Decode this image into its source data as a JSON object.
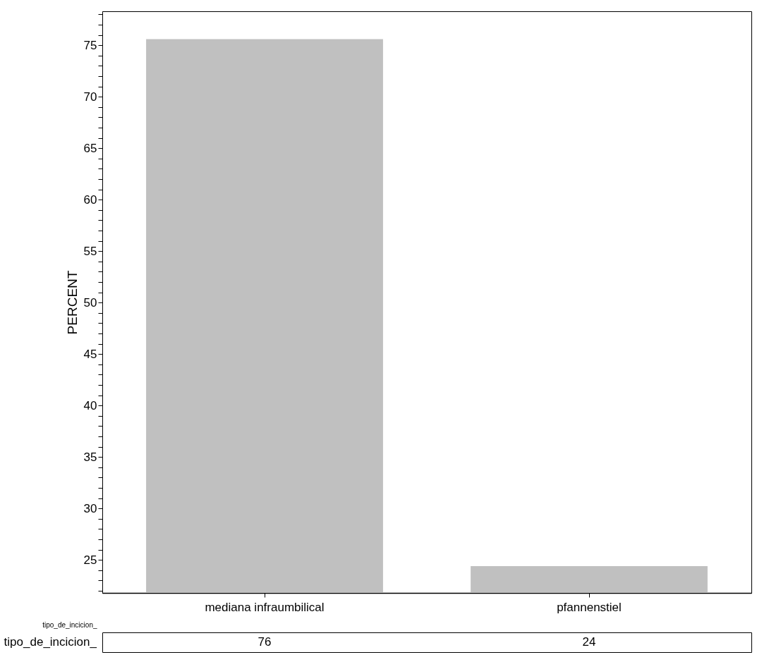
{
  "chart_data": {
    "type": "bar",
    "ylabel": "PERCENT",
    "xlabel": "tipo_de_incicion_",
    "categories": [
      "mediana infraumbilical",
      "pfannenstiel"
    ],
    "values": [
      75.6,
      24.4
    ],
    "value_labels": [
      "76",
      "24"
    ],
    "color": "#c0c0c0",
    "ylim": [
      21.8,
      78.3
    ],
    "yticks": [
      {
        "value": 22,
        "label": null
      },
      {
        "value": 23,
        "label": null
      },
      {
        "value": 24,
        "label": null
      },
      25,
      {
        "value": 26,
        "label": null
      },
      {
        "value": 27,
        "label": null
      },
      {
        "value": 28,
        "label": null
      },
      {
        "value": 29,
        "label": null
      },
      30,
      {
        "value": 31,
        "label": null
      },
      {
        "value": 32,
        "label": null
      },
      {
        "value": 33,
        "label": null
      },
      {
        "value": 34,
        "label": null
      },
      35,
      {
        "value": 36,
        "label": null
      },
      {
        "value": 37,
        "label": null
      },
      {
        "value": 38,
        "label": null
      },
      {
        "value": 39,
        "label": null
      },
      40,
      {
        "value": 41,
        "label": null
      },
      {
        "value": 42,
        "label": null
      },
      {
        "value": 43,
        "label": null
      },
      {
        "value": 44,
        "label": null
      },
      45,
      {
        "value": 46,
        "label": null
      },
      {
        "value": 47,
        "label": null
      },
      {
        "value": 48,
        "label": null
      },
      {
        "value": 49,
        "label": null
      },
      50,
      {
        "value": 51,
        "label": null
      },
      {
        "value": 52,
        "label": null
      },
      {
        "value": 53,
        "label": null
      },
      {
        "value": 54,
        "label": null
      },
      55,
      {
        "value": 56,
        "label": null
      },
      {
        "value": 57,
        "label": null
      },
      {
        "value": 58,
        "label": null
      },
      {
        "value": 59,
        "label": null
      },
      60,
      {
        "value": 61,
        "label": null
      },
      {
        "value": 62,
        "label": null
      },
      {
        "value": 63,
        "label": null
      },
      {
        "value": 64,
        "label": null
      },
      65,
      {
        "value": 66,
        "label": null
      },
      {
        "value": 67,
        "label": null
      },
      {
        "value": 68,
        "label": null
      },
      {
        "value": 69,
        "label": null
      },
      70,
      {
        "value": 71,
        "label": null
      },
      {
        "value": 72,
        "label": null
      },
      {
        "value": 73,
        "label": null
      },
      {
        "value": 74,
        "label": null
      },
      75,
      {
        "value": 76,
        "label": null
      },
      {
        "value": 77,
        "label": null
      },
      {
        "value": 78,
        "label": null
      }
    ],
    "annotations": [
      "tipo_de_incicion_"
    ]
  }
}
